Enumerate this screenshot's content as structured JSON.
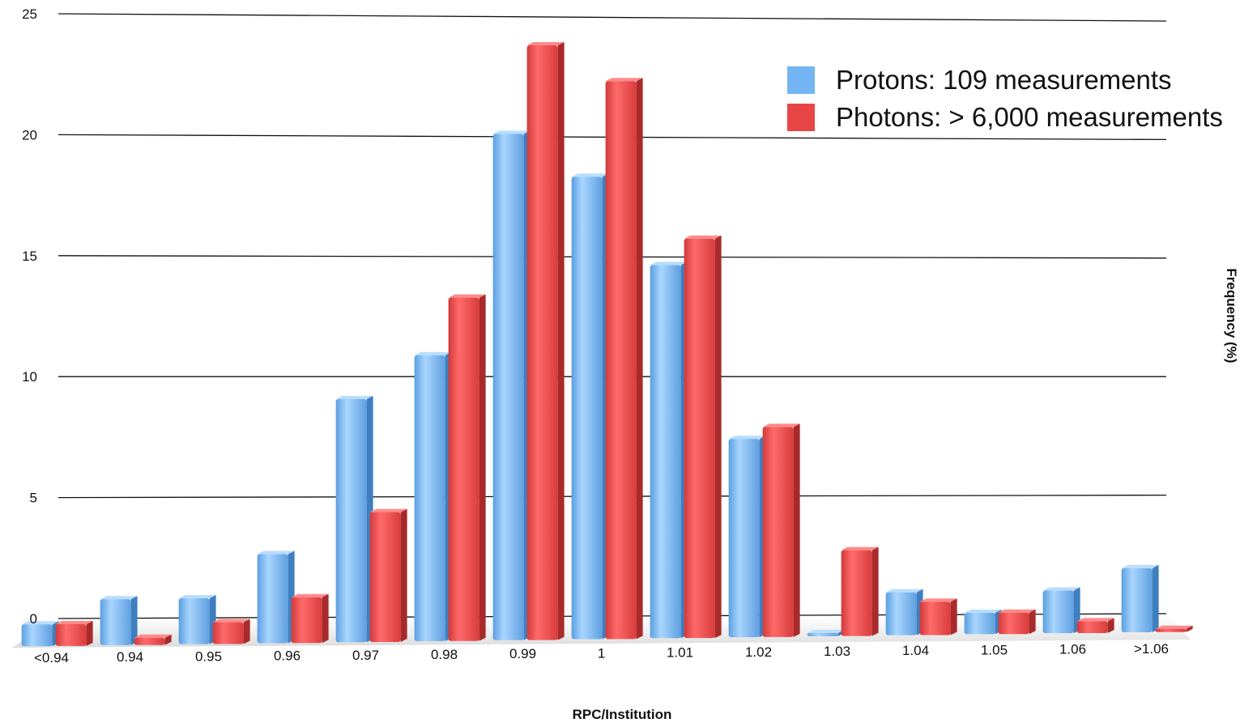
{
  "chart_data": {
    "type": "bar",
    "title": "",
    "xlabel": "RPC/Institution",
    "ylabel": "Frequency (%)",
    "ylim": [
      0,
      25
    ],
    "yticks": [
      "0",
      "5",
      "10",
      "15",
      "20",
      "25"
    ],
    "grid": true,
    "legend_position": "top-right",
    "categories": [
      "<0.94",
      "0.94",
      "0.95",
      "0.96",
      "0.97",
      "0.98",
      "0.99",
      "1",
      "1.01",
      "1.02",
      "1.03",
      "1.04",
      "1.05",
      "1.06",
      ">1.06"
    ],
    "series": [
      {
        "name": "Protons: 109 measurements",
        "color": "#74b6f4",
        "values": [
          0.9,
          1.9,
          1.9,
          3.7,
          10.1,
          11.9,
          21.1,
          19.3,
          15.6,
          8.3,
          0.0,
          1.8,
          0.9,
          1.8,
          2.7
        ]
      },
      {
        "name": "Photons: > 6,000 measurements",
        "color": "#e84646",
        "values": [
          0.9,
          0.3,
          0.9,
          1.9,
          5.4,
          14.3,
          24.8,
          23.3,
          16.7,
          8.8,
          3.6,
          1.4,
          0.9,
          0.5,
          0.1
        ]
      }
    ]
  }
}
